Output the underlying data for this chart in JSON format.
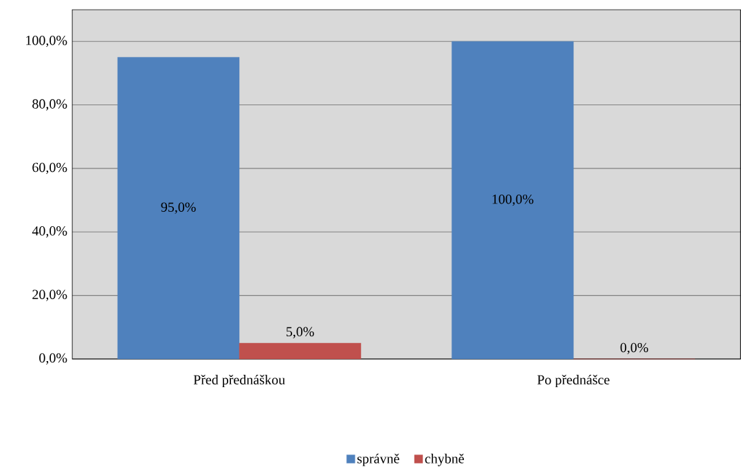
{
  "chart_data": {
    "type": "bar",
    "categories": [
      "Před přednáškou",
      "Po přednášce"
    ],
    "series": [
      {
        "name": "správně",
        "color": "#4f81bd",
        "values": [
          95,
          100
        ],
        "value_labels": [
          "95,0%",
          "100,0%"
        ]
      },
      {
        "name": "chybně",
        "color": "#c0504d",
        "values": [
          5,
          0
        ],
        "value_labels": [
          "5,0%",
          "0,0%"
        ]
      }
    ],
    "ylim": [
      0,
      110
    ],
    "yticks": [
      {
        "value": 0,
        "label": "0,0%"
      },
      {
        "value": 20,
        "label": "20,0%"
      },
      {
        "value": 40,
        "label": "40,0%"
      },
      {
        "value": 60,
        "label": "60,0%"
      },
      {
        "value": 80,
        "label": "80,0%"
      },
      {
        "value": 100,
        "label": "100,0%"
      }
    ],
    "grid": "y",
    "legend": "bottom"
  }
}
